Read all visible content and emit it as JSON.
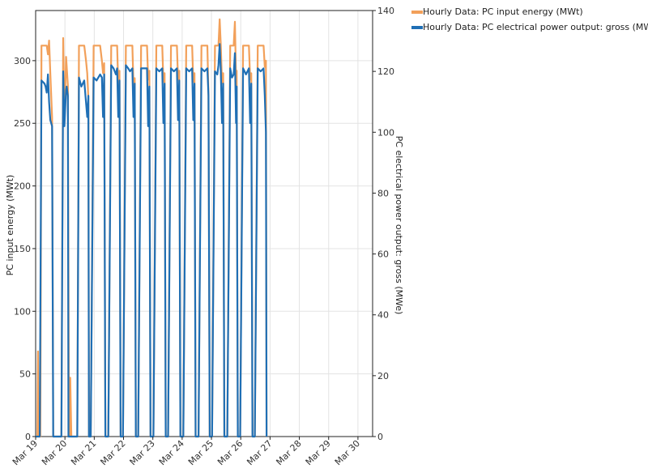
{
  "chart_data": {
    "type": "line",
    "x_tick_labels": [
      "Mar 19",
      "Mar 20",
      "Mar 21",
      "Mar 22",
      "Mar 23",
      "Mar 24",
      "Mar 25",
      "Mar 26",
      "Mar 27",
      "Mar 28",
      "Mar 29",
      "Mar 30"
    ],
    "y_left": {
      "label": "PC input energy (MWt)",
      "range": [
        0,
        340
      ],
      "ticks": [
        0,
        50,
        100,
        150,
        200,
        250,
        300
      ]
    },
    "y_right": {
      "label": "PC electrical power output: gross (MWe)",
      "range": [
        0,
        140
      ],
      "ticks": [
        0,
        20,
        40,
        60,
        80,
        100,
        120,
        140
      ]
    },
    "x_range_days": [
      0,
      11.5
    ],
    "series": [
      {
        "name": "Hourly Data: PC input energy (MWt)",
        "axis": "left",
        "color": "#f2a05a",
        "points": [
          [
            0,
            0
          ],
          [
            0.06,
            0
          ],
          [
            0.08,
            68
          ],
          [
            0.1,
            0
          ],
          [
            0.16,
            0
          ],
          [
            0.2,
            312
          ],
          [
            0.3,
            312
          ],
          [
            0.38,
            312
          ],
          [
            0.42,
            305
          ],
          [
            0.46,
            316
          ],
          [
            0.5,
            290
          ],
          [
            0.56,
            255
          ],
          [
            0.6,
            0
          ],
          [
            0.88,
            0
          ],
          [
            0.94,
            318
          ],
          [
            0.98,
            250
          ],
          [
            1.04,
            303
          ],
          [
            1.1,
            280
          ],
          [
            1.14,
            0
          ],
          [
            1.16,
            0
          ],
          [
            1.18,
            47
          ],
          [
            1.22,
            0
          ],
          [
            1.3,
            0
          ],
          [
            1.42,
            0
          ],
          [
            1.48,
            312
          ],
          [
            1.56,
            312
          ],
          [
            1.66,
            312
          ],
          [
            1.72,
            300
          ],
          [
            1.76,
            290
          ],
          [
            1.8,
            270
          ],
          [
            1.82,
            0
          ],
          [
            1.88,
            0
          ],
          [
            1.98,
            312
          ],
          [
            2.08,
            312
          ],
          [
            2.2,
            312
          ],
          [
            2.26,
            300
          ],
          [
            2.3,
            290
          ],
          [
            2.34,
            298
          ],
          [
            2.38,
            0
          ],
          [
            2.48,
            0
          ],
          [
            2.58,
            312
          ],
          [
            2.66,
            312
          ],
          [
            2.78,
            312
          ],
          [
            2.82,
            280
          ],
          [
            2.86,
            292
          ],
          [
            2.9,
            0
          ],
          [
            2.98,
            0
          ],
          [
            3.08,
            312
          ],
          [
            3.2,
            312
          ],
          [
            3.3,
            312
          ],
          [
            3.34,
            280
          ],
          [
            3.38,
            286
          ],
          [
            3.42,
            0
          ],
          [
            3.5,
            0
          ],
          [
            3.6,
            312
          ],
          [
            3.7,
            312
          ],
          [
            3.8,
            312
          ],
          [
            3.84,
            285
          ],
          [
            3.88,
            292
          ],
          [
            3.92,
            0
          ],
          [
            4.02,
            0
          ],
          [
            4.12,
            312
          ],
          [
            4.22,
            312
          ],
          [
            4.32,
            312
          ],
          [
            4.36,
            283
          ],
          [
            4.4,
            290
          ],
          [
            4.44,
            0
          ],
          [
            4.52,
            0
          ],
          [
            4.62,
            312
          ],
          [
            4.72,
            312
          ],
          [
            4.82,
            312
          ],
          [
            4.86,
            285
          ],
          [
            4.9,
            292
          ],
          [
            4.94,
            0
          ],
          [
            5.04,
            0
          ],
          [
            5.14,
            312
          ],
          [
            5.24,
            312
          ],
          [
            5.34,
            312
          ],
          [
            5.38,
            283
          ],
          [
            5.42,
            290
          ],
          [
            5.46,
            0
          ],
          [
            5.56,
            0
          ],
          [
            5.66,
            312
          ],
          [
            5.76,
            312
          ],
          [
            5.86,
            312
          ],
          [
            5.9,
            272
          ],
          [
            5.94,
            0
          ],
          [
            6.02,
            0
          ],
          [
            6.12,
            312
          ],
          [
            6.18,
            312
          ],
          [
            6.24,
            312
          ],
          [
            6.28,
            333
          ],
          [
            6.32,
            312
          ],
          [
            6.36,
            282
          ],
          [
            6.4,
            290
          ],
          [
            6.44,
            0
          ],
          [
            6.54,
            0
          ],
          [
            6.64,
            312
          ],
          [
            6.7,
            312
          ],
          [
            6.76,
            312
          ],
          [
            6.8,
            331
          ],
          [
            6.84,
            285
          ],
          [
            6.86,
            292
          ],
          [
            6.9,
            0
          ],
          [
            6.98,
            0
          ],
          [
            7.08,
            312
          ],
          [
            7.18,
            312
          ],
          [
            7.28,
            312
          ],
          [
            7.32,
            285
          ],
          [
            7.36,
            290
          ],
          [
            7.4,
            0
          ],
          [
            7.48,
            0
          ],
          [
            7.58,
            312
          ],
          [
            7.68,
            312
          ],
          [
            7.78,
            312
          ],
          [
            7.82,
            295
          ],
          [
            7.86,
            300
          ],
          [
            7.88,
            0
          ]
        ]
      },
      {
        "name": "Hourly Data: PC electrical power output: gross (MWe)",
        "axis": "right",
        "color": "#1f6fb5",
        "points": [
          [
            0,
            0
          ],
          [
            0.08,
            0
          ],
          [
            0.14,
            0
          ],
          [
            0.2,
            117
          ],
          [
            0.3,
            116
          ],
          [
            0.34,
            115
          ],
          [
            0.38,
            113
          ],
          [
            0.42,
            119
          ],
          [
            0.46,
            110
          ],
          [
            0.5,
            104
          ],
          [
            0.56,
            102
          ],
          [
            0.6,
            0
          ],
          [
            0.88,
            0
          ],
          [
            0.94,
            120
          ],
          [
            0.98,
            102
          ],
          [
            1.04,
            114
          ],
          [
            1.06,
            115
          ],
          [
            1.1,
            112
          ],
          [
            1.12,
            0
          ],
          [
            1.42,
            0
          ],
          [
            1.48,
            118
          ],
          [
            1.56,
            115
          ],
          [
            1.66,
            117
          ],
          [
            1.7,
            112
          ],
          [
            1.76,
            105
          ],
          [
            1.8,
            112
          ],
          [
            1.82,
            0
          ],
          [
            1.88,
            0
          ],
          [
            1.98,
            118
          ],
          [
            2.08,
            117
          ],
          [
            2.2,
            119
          ],
          [
            2.26,
            118
          ],
          [
            2.3,
            105
          ],
          [
            2.34,
            119
          ],
          [
            2.38,
            0
          ],
          [
            2.48,
            0
          ],
          [
            2.58,
            122
          ],
          [
            2.66,
            121
          ],
          [
            2.74,
            119
          ],
          [
            2.78,
            121
          ],
          [
            2.82,
            105
          ],
          [
            2.86,
            117
          ],
          [
            2.9,
            0
          ],
          [
            2.98,
            0
          ],
          [
            3.08,
            122
          ],
          [
            3.16,
            121
          ],
          [
            3.22,
            120
          ],
          [
            3.3,
            121
          ],
          [
            3.34,
            105
          ],
          [
            3.38,
            116
          ],
          [
            3.42,
            0
          ],
          [
            3.5,
            0
          ],
          [
            3.6,
            121
          ],
          [
            3.7,
            121
          ],
          [
            3.8,
            121
          ],
          [
            3.84,
            102
          ],
          [
            3.88,
            115
          ],
          [
            3.92,
            0
          ],
          [
            4.02,
            0
          ],
          [
            4.12,
            121
          ],
          [
            4.22,
            120
          ],
          [
            4.32,
            121
          ],
          [
            4.36,
            103
          ],
          [
            4.4,
            116
          ],
          [
            4.44,
            0
          ],
          [
            4.52,
            0
          ],
          [
            4.62,
            121
          ],
          [
            4.72,
            120
          ],
          [
            4.82,
            121
          ],
          [
            4.86,
            104
          ],
          [
            4.9,
            117
          ],
          [
            4.94,
            0
          ],
          [
            5.04,
            0
          ],
          [
            5.14,
            121
          ],
          [
            5.24,
            120
          ],
          [
            5.34,
            121
          ],
          [
            5.38,
            104
          ],
          [
            5.42,
            116
          ],
          [
            5.46,
            0
          ],
          [
            5.56,
            0
          ],
          [
            5.66,
            121
          ],
          [
            5.76,
            120
          ],
          [
            5.86,
            121
          ],
          [
            5.9,
            112
          ],
          [
            5.94,
            0
          ],
          [
            6.02,
            0
          ],
          [
            6.12,
            120
          ],
          [
            6.2,
            119
          ],
          [
            6.24,
            122
          ],
          [
            6.28,
            129
          ],
          [
            6.32,
            120
          ],
          [
            6.36,
            103
          ],
          [
            6.4,
            116
          ],
          [
            6.44,
            0
          ],
          [
            6.54,
            0
          ],
          [
            6.64,
            121
          ],
          [
            6.7,
            118
          ],
          [
            6.76,
            119
          ],
          [
            6.8,
            126
          ],
          [
            6.84,
            103
          ],
          [
            6.86,
            115
          ],
          [
            6.9,
            0
          ],
          [
            6.98,
            0
          ],
          [
            7.08,
            121
          ],
          [
            7.18,
            119
          ],
          [
            7.28,
            121
          ],
          [
            7.32,
            103
          ],
          [
            7.36,
            116
          ],
          [
            7.4,
            0
          ],
          [
            7.48,
            0
          ],
          [
            7.58,
            121
          ],
          [
            7.68,
            120
          ],
          [
            7.78,
            121
          ],
          [
            7.82,
            112
          ],
          [
            7.86,
            100
          ],
          [
            7.88,
            0
          ]
        ]
      }
    ],
    "legend": {
      "position": "top-right"
    }
  }
}
